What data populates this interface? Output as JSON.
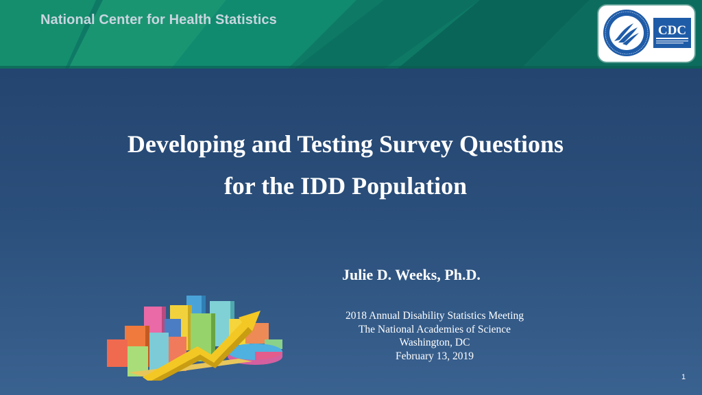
{
  "header": {
    "agency": "National Center for Health Statistics",
    "colors": {
      "banner_base": "#0f7c68",
      "banner_light": "#23a079",
      "banner_dark": "#0a5f55"
    },
    "logos": {
      "hhs_seal_text": "DEPARTMENT OF HEALTH & HUMAN SERVICES USA",
      "cdc_wordmark": "CDC",
      "cdc_tagline": "CENTERS FOR DISEASE CONTROL AND PREVENTION"
    }
  },
  "title": {
    "line1": "Developing and Testing Survey Questions",
    "line2": "for the IDD Population"
  },
  "presenter": "Julie D. Weeks, Ph.D.",
  "meeting": {
    "name": "2018 Annual Disability Statistics Meeting",
    "host": "The National Academies of Science",
    "location": "Washington, DC",
    "date": "February 13, 2019"
  },
  "slide_number": "1",
  "background": {
    "top": "#21406a",
    "bottom": "#3a6290"
  },
  "decoration": {
    "icon": "3d-bar-chart-clipart-icon"
  }
}
